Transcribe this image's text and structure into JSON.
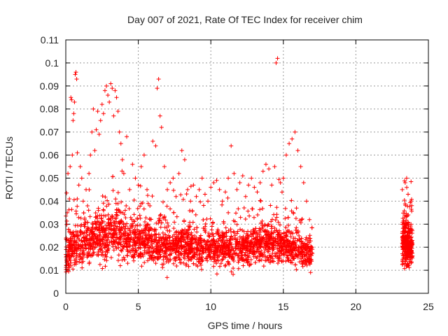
{
  "chart_data": {
    "type": "scatter",
    "title": "Day 007 of 2021, Rate Of TEC Index for receiver chim",
    "xlabel": "GPS time / hours",
    "ylabel": "ROTI / TECUs",
    "xlim": [
      0,
      25
    ],
    "ylim": [
      0,
      0.11
    ],
    "xticks": [
      "0",
      "5",
      "10",
      "15",
      "20",
      "25"
    ],
    "yticks": [
      "0",
      "0.01",
      "0.02",
      "0.03",
      "0.04",
      "0.05",
      "0.06",
      "0.07",
      "0.08",
      "0.09",
      "0.1",
      "0.11"
    ],
    "grid": true,
    "marker": "+",
    "color": "#ff0000",
    "series": [
      {
        "values": [
          [
            0.05,
            0.012
          ],
          [
            0.1,
            0.035
          ],
          [
            0.15,
            0.052
          ],
          [
            0.2,
            0.02
          ],
          [
            0.25,
            0.041
          ],
          [
            0.3,
            0.055
          ],
          [
            0.35,
            0.085
          ],
          [
            0.4,
            0.084
          ],
          [
            0.45,
            0.06
          ],
          [
            0.5,
            0.075
          ],
          [
            0.55,
            0.078
          ],
          [
            0.6,
            0.083
          ],
          [
            0.65,
            0.095
          ],
          [
            0.7,
            0.096
          ],
          [
            0.75,
            0.093
          ],
          [
            0.8,
            0.061
          ],
          [
            0.9,
            0.047
          ],
          [
            1.0,
            0.055
          ],
          [
            1.1,
            0.05
          ],
          [
            1.2,
            0.04
          ],
          [
            1.3,
            0.032
          ],
          [
            1.4,
            0.045
          ],
          [
            1.5,
            0.038
          ],
          [
            1.6,
            0.052
          ],
          [
            1.7,
            0.06
          ],
          [
            1.8,
            0.07
          ],
          [
            1.9,
            0.08
          ],
          [
            2.0,
            0.062
          ],
          [
            2.1,
            0.071
          ],
          [
            2.2,
            0.079
          ],
          [
            2.3,
            0.069
          ],
          [
            2.4,
            0.075
          ],
          [
            2.5,
            0.082
          ],
          [
            2.6,
            0.078
          ],
          [
            2.7,
            0.088
          ],
          [
            2.8,
            0.09
          ],
          [
            2.9,
            0.086
          ],
          [
            3.0,
            0.083
          ],
          [
            3.1,
            0.091
          ],
          [
            3.2,
            0.089
          ],
          [
            3.3,
            0.077
          ],
          [
            3.4,
            0.088
          ],
          [
            3.5,
            0.085
          ],
          [
            3.6,
            0.079
          ],
          [
            3.7,
            0.07
          ],
          [
            3.8,
            0.065
          ],
          [
            3.9,
            0.058
          ],
          [
            4.0,
            0.052
          ],
          [
            4.2,
            0.068
          ],
          [
            4.4,
            0.045
          ],
          [
            4.6,
            0.056
          ],
          [
            4.8,
            0.05
          ],
          [
            5.0,
            0.047
          ],
          [
            5.2,
            0.055
          ],
          [
            5.4,
            0.06
          ],
          [
            5.6,
            0.045
          ],
          [
            5.8,
            0.038
          ],
          [
            6.0,
            0.066
          ],
          [
            6.2,
            0.064
          ],
          [
            6.3,
            0.089
          ],
          [
            6.4,
            0.093
          ],
          [
            6.5,
            0.077
          ],
          [
            6.6,
            0.072
          ],
          [
            6.8,
            0.055
          ],
          [
            7.0,
            0.045
          ],
          [
            7.2,
            0.048
          ],
          [
            7.4,
            0.05
          ],
          [
            7.6,
            0.042
          ],
          [
            7.8,
            0.052
          ],
          [
            8.0,
            0.062
          ],
          [
            8.2,
            0.058
          ],
          [
            8.4,
            0.045
          ],
          [
            8.6,
            0.04
          ],
          [
            8.8,
            0.047
          ],
          [
            9.0,
            0.042
          ],
          [
            9.2,
            0.045
          ],
          [
            9.4,
            0.05
          ],
          [
            9.6,
            0.043
          ],
          [
            9.8,
            0.04
          ],
          [
            10.0,
            0.046
          ],
          [
            10.2,
            0.048
          ],
          [
            10.4,
            0.049
          ],
          [
            10.6,
            0.045
          ],
          [
            10.8,
            0.04
          ],
          [
            11.0,
            0.044
          ],
          [
            11.2,
            0.05
          ],
          [
            11.4,
            0.064
          ],
          [
            11.6,
            0.052
          ],
          [
            11.8,
            0.045
          ],
          [
            12.0,
            0.048
          ],
          [
            12.2,
            0.051
          ],
          [
            12.4,
            0.042
          ],
          [
            12.6,
            0.047
          ],
          [
            12.8,
            0.05
          ],
          [
            13.0,
            0.046
          ],
          [
            13.2,
            0.044
          ],
          [
            13.4,
            0.048
          ],
          [
            13.6,
            0.053
          ],
          [
            13.8,
            0.056
          ],
          [
            14.0,
            0.054
          ],
          [
            14.2,
            0.047
          ],
          [
            14.4,
            0.055
          ],
          [
            14.5,
            0.1
          ],
          [
            14.6,
            0.102
          ],
          [
            14.8,
            0.048
          ],
          [
            15.0,
            0.05
          ],
          [
            15.2,
            0.06
          ],
          [
            15.4,
            0.065
          ],
          [
            15.6,
            0.067
          ],
          [
            15.8,
            0.07
          ],
          [
            16.0,
            0.062
          ],
          [
            16.2,
            0.055
          ],
          [
            16.4,
            0.048
          ],
          [
            16.6,
            0.04
          ],
          [
            16.8,
            0.032
          ],
          [
            23.2,
            0.045
          ],
          [
            23.4,
            0.048
          ],
          [
            23.5,
            0.05
          ],
          [
            23.6,
            0.043
          ],
          [
            23.8,
            0.04
          ]
        ]
      }
    ],
    "band_summary": [
      [
        0,
        0.017,
        0.006
      ],
      [
        0.5,
        0.02,
        0.007
      ],
      [
        1,
        0.022,
        0.007
      ],
      [
        2,
        0.024,
        0.008
      ],
      [
        3,
        0.026,
        0.009
      ],
      [
        4,
        0.025,
        0.008
      ],
      [
        5,
        0.023,
        0.007
      ],
      [
        6,
        0.022,
        0.007
      ],
      [
        7,
        0.021,
        0.007
      ],
      [
        8,
        0.021,
        0.006
      ],
      [
        9,
        0.02,
        0.006
      ],
      [
        10,
        0.02,
        0.006
      ],
      [
        11,
        0.02,
        0.006
      ],
      [
        12,
        0.02,
        0.006
      ],
      [
        13,
        0.021,
        0.006
      ],
      [
        14,
        0.022,
        0.007
      ],
      [
        15,
        0.021,
        0.006
      ],
      [
        16,
        0.019,
        0.006
      ],
      [
        17,
        0.017,
        0.005
      ],
      [
        23.2,
        0.022,
        0.007
      ],
      [
        23.5,
        0.022,
        0.007
      ],
      [
        23.9,
        0.02,
        0.006
      ]
    ]
  }
}
